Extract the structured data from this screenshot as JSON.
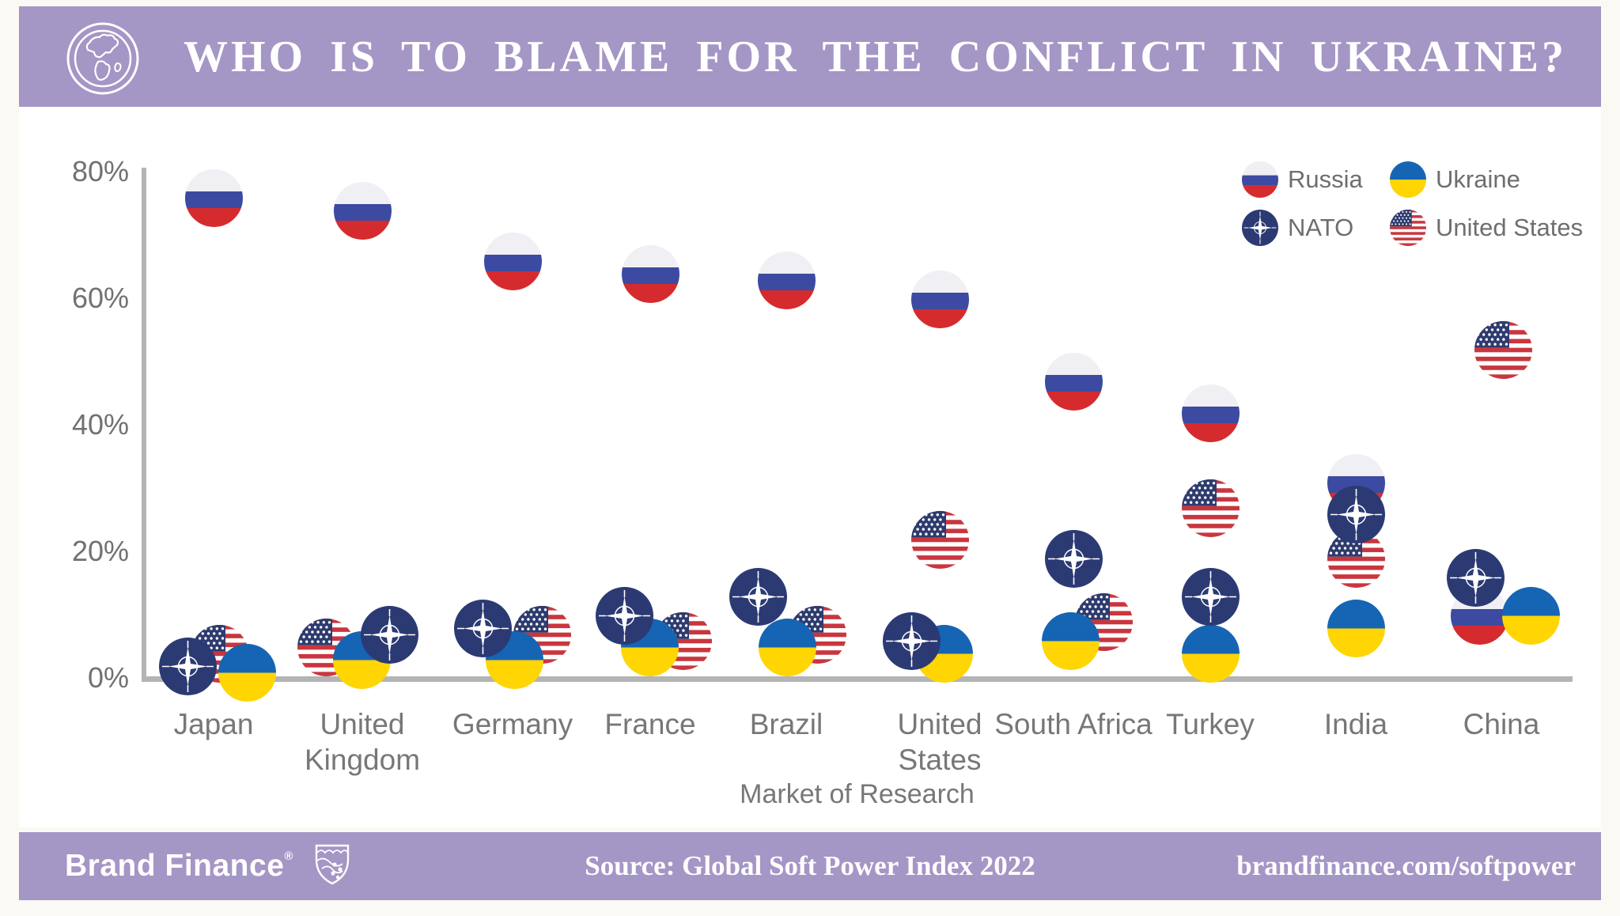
{
  "header": {
    "title": "WHO IS TO BLAME FOR THE CONFLICT IN UKRAINE?"
  },
  "colors": {
    "purple": "#a496c5",
    "chart_bg": "#ffffff",
    "page_bg": "#fbf9f4",
    "axis": "#b4b4b4",
    "label_gray": "#777777",
    "russia_white": "#f0eff3",
    "russia_blue": "#3c4ba1",
    "russia_red": "#d52b2e",
    "ukraine_blue": "#1565b4",
    "ukraine_yellow": "#ffd504",
    "nato_navy": "#2c3a74",
    "us_canton": "#2e3b6e",
    "us_red": "#c9363e"
  },
  "legend": {
    "items": [
      {
        "id": "russia",
        "label": "Russia"
      },
      {
        "id": "ukraine",
        "label": "Ukraine"
      },
      {
        "id": "nato",
        "label": "NATO"
      },
      {
        "id": "us",
        "label": "United States"
      }
    ]
  },
  "chart_data": {
    "type": "scatter",
    "title": "WHO IS TO BLAME FOR THE CONFLICT IN UKRAINE?",
    "xlabel": "Market of Research",
    "ylabel": "",
    "ylim": [
      0,
      80
    ],
    "grid": false,
    "legend_position": "top-right",
    "yticks": [
      "0%",
      "20%",
      "40%",
      "60%",
      "80%"
    ],
    "ytick_values": [
      0,
      20,
      40,
      60,
      80
    ],
    "categories": [
      "Japan",
      "United Kingdom",
      "Germany",
      "France",
      "Brazil",
      "United States",
      "South Africa",
      "Turkey",
      "India",
      "China"
    ],
    "series": [
      {
        "id": "russia",
        "name": "Russia",
        "values": [
          76,
          74,
          66,
          64,
          63,
          60,
          47,
          42,
          31,
          10
        ],
        "dx": [
          0,
          0,
          0,
          0,
          0,
          0,
          0,
          0,
          0,
          -28
        ]
      },
      {
        "id": "us",
        "name": "United States",
        "values": [
          4,
          5,
          7,
          6,
          7,
          22,
          9,
          27,
          19,
          52
        ],
        "dx": [
          7,
          -46,
          37,
          41,
          39,
          0,
          38,
          0,
          0,
          2
        ]
      },
      {
        "id": "ukraine",
        "name": "Ukraine",
        "values": [
          1,
          3,
          3,
          5,
          5,
          4,
          6,
          4,
          8,
          10
        ],
        "dx": [
          42,
          -1,
          2,
          -1,
          1,
          5,
          -4,
          0,
          0,
          37
        ]
      },
      {
        "id": "nato",
        "name": "NATO",
        "values": [
          2,
          7,
          8,
          10,
          13,
          6,
          19,
          13,
          26,
          16
        ],
        "dx": [
          -33,
          34,
          -38,
          -33,
          -36,
          -36,
          0,
          0,
          0,
          -33
        ]
      }
    ]
  },
  "footer": {
    "logo": "Brand Finance",
    "reg": "®",
    "source": "Source: Global Soft Power Index 2022",
    "url": "brandfinance.com/softpower"
  }
}
